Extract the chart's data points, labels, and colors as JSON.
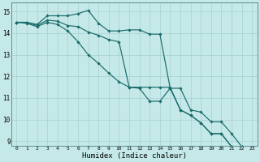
{
  "xlabel": "Humidex (Indice chaleur)",
  "xlim": [
    -0.5,
    23.5
  ],
  "ylim": [
    8.8,
    15.4
  ],
  "yticks": [
    9,
    10,
    11,
    12,
    13,
    14,
    15
  ],
  "xticks": [
    0,
    1,
    2,
    3,
    4,
    5,
    6,
    7,
    8,
    9,
    10,
    11,
    12,
    13,
    14,
    15,
    16,
    17,
    18,
    19,
    20,
    21,
    22,
    23
  ],
  "background_color": "#c5e8e8",
  "grid_color": "#a8d0d0",
  "line_color": "#1a6b6b",
  "series": {
    "line1": [
      14.5,
      14.5,
      14.4,
      14.8,
      14.8,
      14.8,
      14.9,
      15.05,
      14.45,
      14.1,
      14.1,
      14.15,
      14.15,
      13.95,
      13.95,
      11.45,
      11.45,
      10.45,
      10.35,
      9.9,
      9.9,
      9.35,
      8.75,
      8.7
    ],
    "line2": [
      14.5,
      14.5,
      14.35,
      14.6,
      14.55,
      14.35,
      14.3,
      14.05,
      13.9,
      13.7,
      13.6,
      11.5,
      11.45,
      10.85,
      10.85,
      11.45,
      10.45,
      10.2,
      9.85,
      9.35,
      9.35,
      8.75,
      8.75,
      8.7
    ],
    "line3": [
      14.5,
      14.45,
      14.3,
      14.5,
      14.4,
      14.1,
      13.6,
      13.0,
      12.6,
      12.15,
      11.75,
      11.5,
      11.5,
      11.5,
      11.5,
      11.5,
      10.45,
      10.2,
      9.85,
      9.35,
      9.35,
      8.75,
      8.75,
      8.7
    ]
  },
  "x": [
    0,
    1,
    2,
    3,
    4,
    5,
    6,
    7,
    8,
    9,
    10,
    11,
    12,
    13,
    14,
    15,
    16,
    17,
    18,
    19,
    20,
    21,
    22,
    23
  ]
}
